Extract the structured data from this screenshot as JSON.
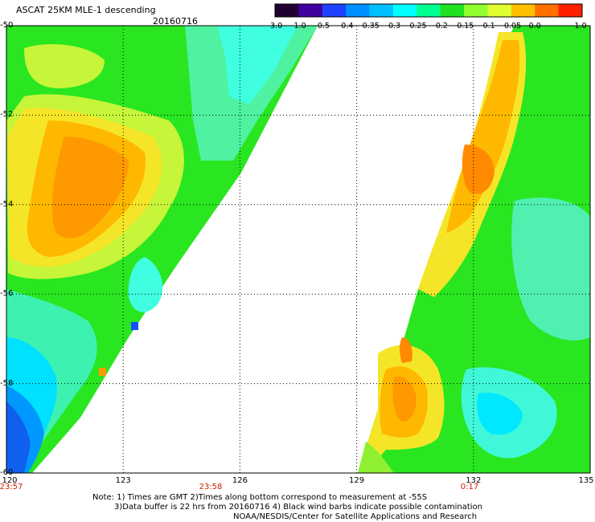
{
  "header": {
    "title": "ASCAT 25KM MLE-1 descending",
    "date": "20160716"
  },
  "colorbar": {
    "labels": [
      "-3.0",
      "-1.0",
      "-0.5",
      "-0.4",
      "-0.35",
      "-0.3",
      "-0.25",
      "-0.2",
      "-0.15",
      "-0.1",
      "-0.05",
      "0.0",
      "1.0"
    ],
    "colors": [
      "#200030",
      "#4000a0",
      "#2040ff",
      "#0090ff",
      "#00c0ff",
      "#00ffff",
      "#00ff90",
      "#20e020",
      "#90ff30",
      "#e0ff30",
      "#ffc000",
      "#ff7000",
      "#ff2000"
    ]
  },
  "map": {
    "lon_ticks": [
      "120",
      "123",
      "126",
      "129",
      "132",
      "135"
    ],
    "lat_ticks": [
      "-50",
      "-52",
      "-54",
      "-56",
      "-58",
      "-60"
    ],
    "times": [
      "23:57",
      "23:58",
      "0:17"
    ],
    "lon_range": [
      120,
      135
    ],
    "lat_range": [
      -60,
      -50
    ],
    "gridlines": true
  },
  "footer": {
    "line1": "Note: 1) Times are GMT 2)Times along bottom correspond to measurement at -55S",
    "line2": "3)Data buffer is 22 hrs from 20160716 4) Black wind barbs indicate possible contamination",
    "line3": "NOAA/NESDIS/Center for Satellite Applications and Research"
  }
}
